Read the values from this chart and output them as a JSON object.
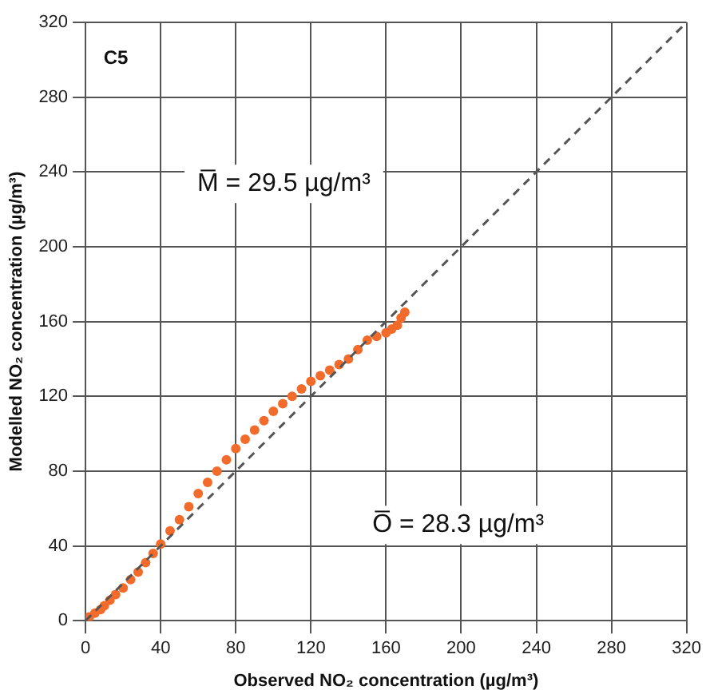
{
  "chart_data": {
    "type": "scatter",
    "xlabel": "Observed NO₂ concentration (µg/m³)",
    "ylabel": "Modelled NO₂ concentration (µg/m³)",
    "annotations": [
      "C5",
      "M̅ = 29.5 µg/m³",
      "O̅ = 28.3 µg/m³"
    ],
    "xlim": [
      0,
      320
    ],
    "ylim": [
      0,
      320
    ],
    "xticks": [
      0,
      40,
      80,
      120,
      160,
      200,
      240,
      280,
      320
    ],
    "yticks": [
      0,
      40,
      80,
      120,
      160,
      200,
      240,
      280,
      320
    ],
    "grid": true,
    "legend": false,
    "marker": "circle",
    "series": [
      {
        "color": "#f26b2a",
        "x": [
          0,
          2,
          5,
          8,
          10,
          13,
          16,
          20,
          24,
          28,
          32,
          36,
          40,
          45,
          50,
          55,
          60,
          65,
          70,
          75,
          80,
          85,
          90,
          95,
          100,
          105,
          110,
          115,
          120,
          125,
          130,
          135,
          140,
          145,
          150,
          155,
          160,
          163,
          166,
          168,
          170
        ],
        "values": [
          0,
          2,
          4,
          6,
          8,
          11,
          14,
          17.5,
          22,
          26,
          31,
          36,
          41,
          48,
          54,
          61,
          68,
          74,
          80,
          86,
          92,
          97,
          102,
          107,
          112,
          116,
          120,
          124,
          128,
          131,
          134,
          137,
          140,
          145,
          150,
          152,
          154,
          156,
          158,
          162,
          165
        ]
      },
      {
        "type": "line",
        "line_style": "dashed",
        "marker": "none",
        "color": "#555555",
        "x": [
          0,
          320
        ],
        "values": [
          0,
          320
        ]
      }
    ]
  }
}
